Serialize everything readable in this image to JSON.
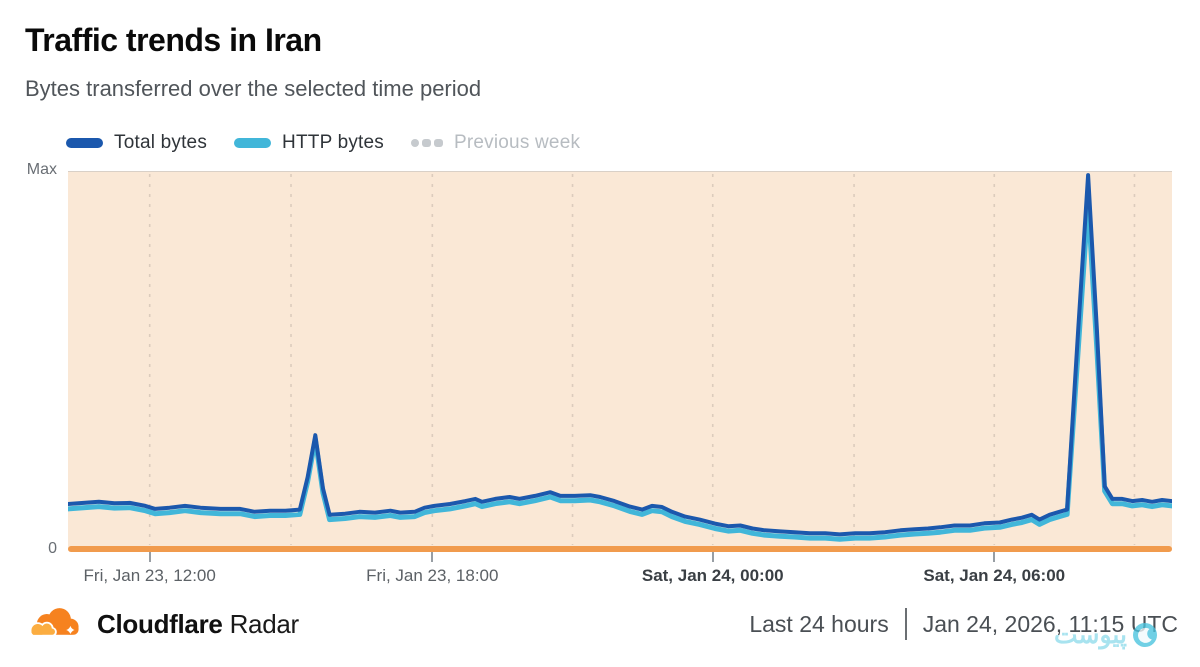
{
  "header": {
    "title": "Traffic trends in Iran",
    "subtitle": "Bytes transferred over the selected time period"
  },
  "legend": {
    "items": [
      {
        "label": "Total bytes",
        "color": "#1B58AD",
        "active": true
      },
      {
        "label": "HTTP bytes",
        "color": "#41B6D9",
        "active": true
      },
      {
        "label": "Previous week",
        "color": "#C6CACE",
        "active": false
      }
    ]
  },
  "chart_data": {
    "type": "line",
    "title": "Traffic trends in Iran",
    "ylabel": "Bytes transferred",
    "y_ticks": [
      "Max",
      "0"
    ],
    "ylim": [
      0,
      1
    ],
    "grid": true,
    "legend_position": "top",
    "x_ticks": [
      {
        "pos": 0.074,
        "label": "Fri, Jan 23, 12:00",
        "bold": false
      },
      {
        "pos": 0.33,
        "label": "Fri, Jan 23, 18:00",
        "bold": false
      },
      {
        "pos": 0.584,
        "label": "Sat, Jan 24, 00:00",
        "bold": true
      },
      {
        "pos": 0.839,
        "label": "Sat, Jan 24, 06:00",
        "bold": true
      }
    ],
    "gridline_positions": [
      0.074,
      0.202,
      0.33,
      0.457,
      0.584,
      0.712,
      0.839,
      0.966
    ],
    "colors": {
      "plot_bg": "#FAE8D6",
      "baseline": "#F19B4D",
      "grid": "#DCCCBD",
      "total": "#1B58AD",
      "http": "#41B6D9"
    },
    "series": [
      {
        "name": "Total bytes",
        "color": "#1B58AD",
        "points": [
          [
            0.0,
            0.108
          ],
          [
            0.014,
            0.111
          ],
          [
            0.028,
            0.114
          ],
          [
            0.042,
            0.11
          ],
          [
            0.056,
            0.111
          ],
          [
            0.07,
            0.103
          ],
          [
            0.079,
            0.095
          ],
          [
            0.092,
            0.098
          ],
          [
            0.106,
            0.103
          ],
          [
            0.12,
            0.098
          ],
          [
            0.138,
            0.095
          ],
          [
            0.156,
            0.095
          ],
          [
            0.169,
            0.087
          ],
          [
            0.183,
            0.09
          ],
          [
            0.197,
            0.09
          ],
          [
            0.21,
            0.093
          ],
          [
            0.217,
            0.18
          ],
          [
            0.224,
            0.294
          ],
          [
            0.231,
            0.15
          ],
          [
            0.237,
            0.079
          ],
          [
            0.251,
            0.082
          ],
          [
            0.264,
            0.087
          ],
          [
            0.278,
            0.085
          ],
          [
            0.292,
            0.09
          ],
          [
            0.301,
            0.085
          ],
          [
            0.314,
            0.087
          ],
          [
            0.323,
            0.098
          ],
          [
            0.332,
            0.103
          ],
          [
            0.346,
            0.108
          ],
          [
            0.36,
            0.116
          ],
          [
            0.369,
            0.122
          ],
          [
            0.375,
            0.114
          ],
          [
            0.387,
            0.122
          ],
          [
            0.4,
            0.127
          ],
          [
            0.409,
            0.122
          ],
          [
            0.423,
            0.13
          ],
          [
            0.437,
            0.14
          ],
          [
            0.446,
            0.13
          ],
          [
            0.459,
            0.13
          ],
          [
            0.473,
            0.132
          ],
          [
            0.482,
            0.127
          ],
          [
            0.495,
            0.116
          ],
          [
            0.509,
            0.101
          ],
          [
            0.52,
            0.093
          ],
          [
            0.529,
            0.103
          ],
          [
            0.538,
            0.1
          ],
          [
            0.547,
            0.087
          ],
          [
            0.559,
            0.074
          ],
          [
            0.572,
            0.066
          ],
          [
            0.586,
            0.055
          ],
          [
            0.598,
            0.048
          ],
          [
            0.609,
            0.05
          ],
          [
            0.62,
            0.042
          ],
          [
            0.631,
            0.037
          ],
          [
            0.645,
            0.034
          ],
          [
            0.658,
            0.032
          ],
          [
            0.672,
            0.029
          ],
          [
            0.686,
            0.029
          ],
          [
            0.699,
            0.026
          ],
          [
            0.713,
            0.029
          ],
          [
            0.726,
            0.029
          ],
          [
            0.74,
            0.032
          ],
          [
            0.754,
            0.037
          ],
          [
            0.767,
            0.04
          ],
          [
            0.779,
            0.042
          ],
          [
            0.79,
            0.045
          ],
          [
            0.803,
            0.05
          ],
          [
            0.817,
            0.05
          ],
          [
            0.83,
            0.056
          ],
          [
            0.844,
            0.058
          ],
          [
            0.855,
            0.066
          ],
          [
            0.864,
            0.071
          ],
          [
            0.873,
            0.079
          ],
          [
            0.88,
            0.066
          ],
          [
            0.889,
            0.079
          ],
          [
            0.898,
            0.087
          ],
          [
            0.905,
            0.093
          ],
          [
            0.915,
            0.579
          ],
          [
            0.924,
            0.997
          ],
          [
            0.932,
            0.579
          ],
          [
            0.939,
            0.156
          ],
          [
            0.946,
            0.122
          ],
          [
            0.955,
            0.122
          ],
          [
            0.964,
            0.116
          ],
          [
            0.973,
            0.119
          ],
          [
            0.982,
            0.114
          ],
          [
            0.991,
            0.119
          ],
          [
            1.0,
            0.116
          ]
        ]
      },
      {
        "name": "HTTP bytes",
        "color": "#41B6D9",
        "points": [
          [
            0.0,
            0.095
          ],
          [
            0.014,
            0.098
          ],
          [
            0.028,
            0.101
          ],
          [
            0.042,
            0.097
          ],
          [
            0.056,
            0.098
          ],
          [
            0.07,
            0.09
          ],
          [
            0.079,
            0.082
          ],
          [
            0.092,
            0.085
          ],
          [
            0.106,
            0.09
          ],
          [
            0.12,
            0.085
          ],
          [
            0.138,
            0.082
          ],
          [
            0.156,
            0.082
          ],
          [
            0.169,
            0.074
          ],
          [
            0.183,
            0.077
          ],
          [
            0.197,
            0.077
          ],
          [
            0.21,
            0.08
          ],
          [
            0.217,
            0.168
          ],
          [
            0.224,
            0.283
          ],
          [
            0.231,
            0.138
          ],
          [
            0.237,
            0.066
          ],
          [
            0.251,
            0.069
          ],
          [
            0.264,
            0.074
          ],
          [
            0.278,
            0.072
          ],
          [
            0.292,
            0.077
          ],
          [
            0.301,
            0.072
          ],
          [
            0.314,
            0.074
          ],
          [
            0.323,
            0.085
          ],
          [
            0.332,
            0.09
          ],
          [
            0.346,
            0.095
          ],
          [
            0.36,
            0.103
          ],
          [
            0.369,
            0.109
          ],
          [
            0.375,
            0.101
          ],
          [
            0.387,
            0.109
          ],
          [
            0.4,
            0.114
          ],
          [
            0.409,
            0.109
          ],
          [
            0.423,
            0.117
          ],
          [
            0.437,
            0.127
          ],
          [
            0.446,
            0.117
          ],
          [
            0.459,
            0.117
          ],
          [
            0.473,
            0.119
          ],
          [
            0.482,
            0.114
          ],
          [
            0.495,
            0.103
          ],
          [
            0.509,
            0.088
          ],
          [
            0.52,
            0.08
          ],
          [
            0.529,
            0.09
          ],
          [
            0.538,
            0.087
          ],
          [
            0.547,
            0.074
          ],
          [
            0.559,
            0.061
          ],
          [
            0.572,
            0.053
          ],
          [
            0.586,
            0.042
          ],
          [
            0.598,
            0.035
          ],
          [
            0.609,
            0.037
          ],
          [
            0.62,
            0.029
          ],
          [
            0.631,
            0.024
          ],
          [
            0.645,
            0.021
          ],
          [
            0.658,
            0.019
          ],
          [
            0.672,
            0.016
          ],
          [
            0.686,
            0.016
          ],
          [
            0.699,
            0.013
          ],
          [
            0.713,
            0.016
          ],
          [
            0.726,
            0.016
          ],
          [
            0.74,
            0.019
          ],
          [
            0.754,
            0.024
          ],
          [
            0.767,
            0.027
          ],
          [
            0.779,
            0.029
          ],
          [
            0.79,
            0.032
          ],
          [
            0.803,
            0.037
          ],
          [
            0.817,
            0.037
          ],
          [
            0.83,
            0.043
          ],
          [
            0.844,
            0.045
          ],
          [
            0.855,
            0.053
          ],
          [
            0.864,
            0.058
          ],
          [
            0.873,
            0.066
          ],
          [
            0.88,
            0.053
          ],
          [
            0.889,
            0.066
          ],
          [
            0.898,
            0.074
          ],
          [
            0.905,
            0.08
          ],
          [
            0.915,
            0.525
          ],
          [
            0.924,
            0.923
          ],
          [
            0.932,
            0.525
          ],
          [
            0.939,
            0.143
          ],
          [
            0.946,
            0.109
          ],
          [
            0.955,
            0.109
          ],
          [
            0.964,
            0.103
          ],
          [
            0.973,
            0.106
          ],
          [
            0.982,
            0.101
          ],
          [
            0.991,
            0.106
          ],
          [
            1.0,
            0.103
          ]
        ]
      }
    ]
  },
  "footer": {
    "brand_bold": "Cloudflare",
    "brand_regular": "Radar",
    "time_range": "Last 24 hours",
    "timestamp": "Jan 24, 2026, 11:15 UTC"
  },
  "watermark": {
    "text": "پیوست",
    "color": "#54C8E1"
  }
}
